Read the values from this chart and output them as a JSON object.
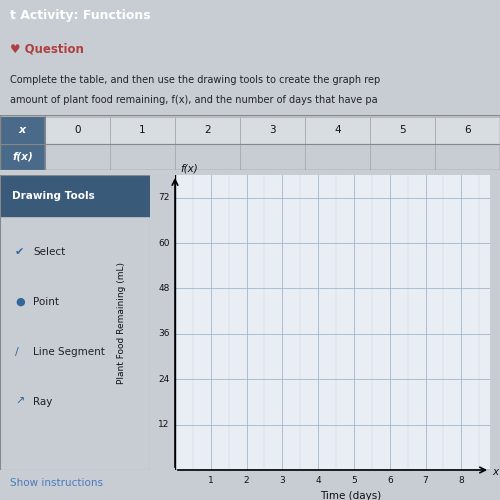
{
  "title_bar": "t Activity: Functions",
  "section_label": "Question",
  "instruction_line1": "Complete the table, and then use the drawing tools to create the graph rep",
  "instruction_line2": "amount of plant food remaining, f(x), and the number of days that have pa",
  "table_x_values": [
    0,
    1,
    2,
    3,
    4,
    5,
    6
  ],
  "drawing_tools": [
    "Select",
    "Point",
    "Line Segment",
    "Ray"
  ],
  "graph_ylabel": "Plant Food Remaining (mL)",
  "graph_xlabel": "Time (days)",
  "graph_y_label_top": "f(x)",
  "graph_x_label_right": "x",
  "yticks": [
    12,
    24,
    36,
    48,
    60,
    72
  ],
  "xticks": [
    1,
    2,
    3,
    4,
    5,
    6,
    7,
    8
  ],
  "ylim": [
    0,
    78
  ],
  "xlim": [
    0,
    8.8
  ],
  "bg_color": "#c8cdd4",
  "header_bg": "#4a8bc4",
  "header_text_color": "#ffffff",
  "question_color": "#b04040",
  "table_header_bg": "#4a6a8a",
  "table_x_bg": "#e8e8e8",
  "table_fx_bg": "#d8d8d8",
  "drawing_tools_header_bg": "#3a5a7a",
  "drawing_tools_header_fg": "#ffffff",
  "drawing_panel_bg": "#e8e8e8",
  "graph_bg": "#e8eef4",
  "grid_color": "#a0b8cc",
  "show_instructions_color": "#4a7abf",
  "bottom_bar_color": "#1a1a2a"
}
